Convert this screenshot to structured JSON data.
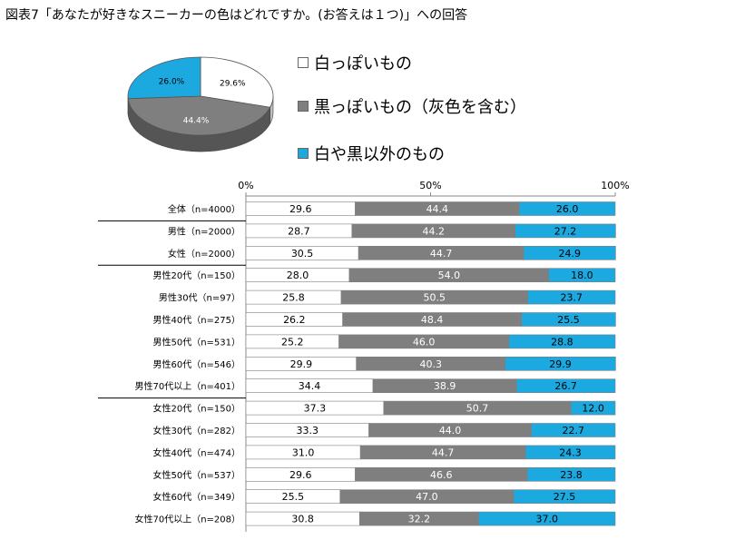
{
  "title": "図表7「あなたが好きなスニーカーの色はどれですか。(お答えは１つ)」への回答",
  "colors": {
    "white": "#ffffff",
    "black": "#7f7f7f",
    "other": "#1ba9e0",
    "pie_side_gray": "#555555",
    "pie_side_blue": "#0f7fb0"
  },
  "legend": [
    {
      "label": "白っぽいもの",
      "color": "#ffffff"
    },
    {
      "label": "黒っぽいもの（灰色を含む）",
      "color": "#7f7f7f"
    },
    {
      "label": "白や黒以外のもの",
      "color": "#1ba9e0"
    }
  ],
  "chart_data": [
    {
      "type": "pie",
      "title": "",
      "labels": [
        "白っぽいもの",
        "黒っぽいもの（灰色を含む）",
        "白や黒以外のもの"
      ],
      "values": [
        29.6,
        44.4,
        26.0
      ],
      "value_labels": [
        "29.6%",
        "44.4%",
        "26.0%"
      ]
    },
    {
      "type": "bar",
      "orientation": "horizontal-stacked-100",
      "x_ticks": [
        "0%",
        "50%",
        "100%"
      ],
      "xlim": [
        0,
        100
      ],
      "categories": [
        "全体（n=4000）",
        "男性（n=2000）",
        "女性（n=2000）",
        "男性20代（n=150）",
        "男性30代（n=97）",
        "男性40代（n=275）",
        "男性50代（n=531）",
        "男性60代（n=546）",
        "男性70代以上（n=401）",
        "女性20代（n=150）",
        "女性30代（n=282）",
        "女性40代（n=474）",
        "女性50代（n=537）",
        "女性60代（n=349）",
        "女性70代以上（n=208）"
      ],
      "series": [
        {
          "name": "白っぽいもの",
          "values": [
            29.6,
            28.7,
            30.5,
            28.0,
            25.8,
            26.2,
            25.2,
            29.9,
            34.4,
            37.3,
            33.3,
            31.0,
            29.6,
            25.5,
            30.8
          ]
        },
        {
          "name": "黒っぽいもの（灰色を含む）",
          "values": [
            44.4,
            44.2,
            44.7,
            54.0,
            50.5,
            48.4,
            46.0,
            40.3,
            38.9,
            50.7,
            44.0,
            44.7,
            46.6,
            47.0,
            32.2
          ]
        },
        {
          "name": "白や黒以外のもの",
          "values": [
            26.0,
            27.2,
            24.9,
            18.0,
            23.7,
            25.5,
            28.8,
            29.9,
            26.7,
            12.0,
            22.7,
            24.3,
            23.8,
            27.5,
            37.0
          ]
        }
      ]
    }
  ]
}
